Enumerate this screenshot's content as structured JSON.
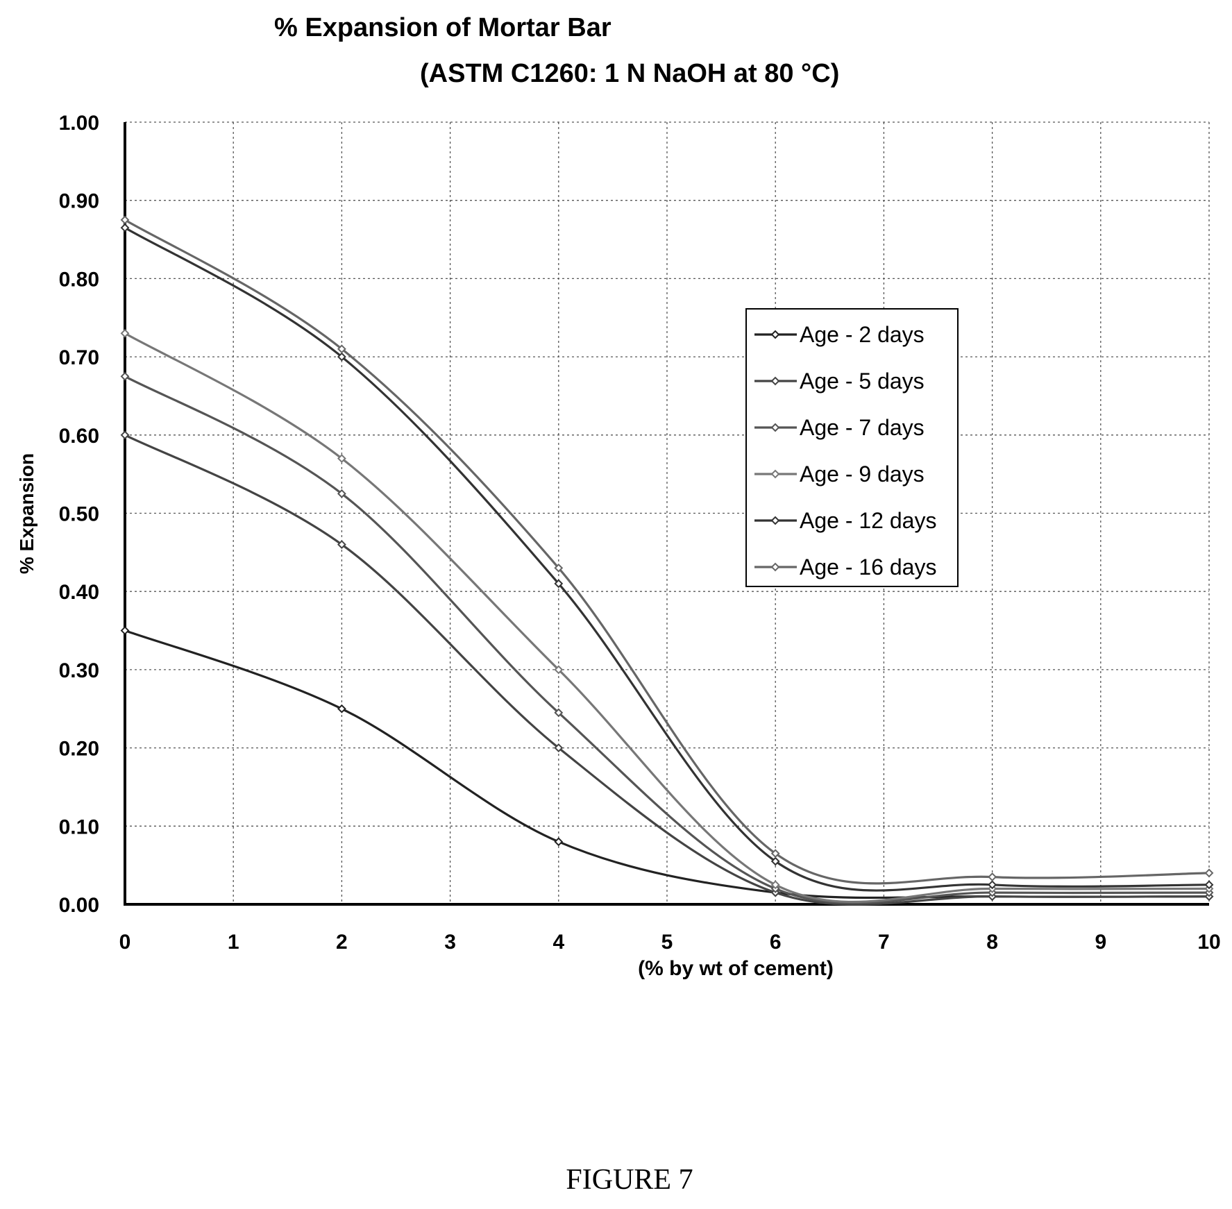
{
  "chart_data": {
    "type": "line",
    "title": "% Expansion of Mortar Bar",
    "subtitle": "(ASTM C1260: 1 N NaOH at 80 °C)",
    "xlabel": "(% by wt of cement)",
    "ylabel": "% Expansion",
    "xlim": [
      0,
      10
    ],
    "ylim": [
      0,
      1.0
    ],
    "x_ticks": [
      "0",
      "1",
      "2",
      "3",
      "4",
      "5",
      "6",
      "7",
      "8",
      "9",
      "10"
    ],
    "y_ticks": [
      "0.00",
      "0.10",
      "0.20",
      "0.30",
      "0.40",
      "0.50",
      "0.60",
      "0.70",
      "0.80",
      "0.90",
      "1.00"
    ],
    "grid": true,
    "legend_position": "right-center",
    "x": [
      0,
      2,
      4,
      6,
      8,
      10
    ],
    "series": [
      {
        "name": "Age - 2 days",
        "values": [
          0.35,
          0.25,
          0.08,
          0.015,
          0.01,
          0.01
        ],
        "color": "#222222"
      },
      {
        "name": "Age - 5 days",
        "values": [
          0.6,
          0.46,
          0.2,
          0.015,
          0.01,
          0.01
        ],
        "color": "#444444"
      },
      {
        "name": "Age - 7 days",
        "values": [
          0.675,
          0.525,
          0.245,
          0.02,
          0.015,
          0.015
        ],
        "color": "#555555"
      },
      {
        "name": "Age - 9 days",
        "values": [
          0.73,
          0.57,
          0.3,
          0.025,
          0.02,
          0.02
        ],
        "color": "#777777"
      },
      {
        "name": "Age - 12 days",
        "values": [
          0.865,
          0.7,
          0.41,
          0.055,
          0.025,
          0.025
        ],
        "color": "#333333"
      },
      {
        "name": "Age - 16 days",
        "values": [
          0.875,
          0.71,
          0.43,
          0.065,
          0.035,
          0.04
        ],
        "color": "#666666"
      }
    ]
  },
  "figure_caption": "FIGURE 7"
}
